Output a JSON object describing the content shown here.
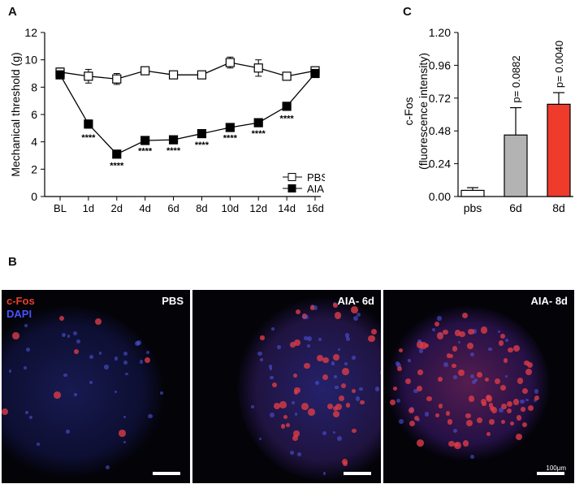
{
  "panels": {
    "a": "A",
    "b": "B",
    "c": "C"
  },
  "chart_data": [
    {
      "type": "line",
      "panel": "A",
      "ylabel": "Mechanical threshold (g)",
      "ylim": [
        0,
        12
      ],
      "yticks": [
        0,
        2,
        4,
        6,
        8,
        10,
        12
      ],
      "categories": [
        "BL",
        "1d",
        "2d",
        "4d",
        "6d",
        "8d",
        "10d",
        "12d",
        "14d",
        "16d"
      ],
      "series": [
        {
          "name": "PBS",
          "marker": "open-square",
          "values": [
            9.1,
            8.8,
            8.6,
            9.2,
            8.9,
            8.9,
            9.8,
            9.4,
            8.8,
            9.2
          ],
          "errors": [
            0.3,
            0.5,
            0.4,
            0.2,
            0.15,
            0.2,
            0.4,
            0.6,
            0.2,
            0.2
          ]
        },
        {
          "name": "AIA",
          "marker": "filled-square",
          "values": [
            8.9,
            5.3,
            3.1,
            4.1,
            4.15,
            4.6,
            5.05,
            5.4,
            6.6,
            9.0
          ],
          "errors": [
            0.2,
            0.3,
            0.15,
            0.1,
            0.1,
            0.15,
            0.1,
            0.1,
            0.2,
            0.1
          ]
        }
      ],
      "significance": [
        "",
        "****",
        "****",
        "****",
        "****",
        "****",
        "****",
        "****",
        "****",
        ""
      ],
      "legend_position": "bottom-right"
    },
    {
      "type": "bar",
      "panel": "C",
      "ylabel": "c-Fos",
      "ylabel2": "(fluorescence intensity)",
      "ylim": [
        0,
        1.2
      ],
      "yticks": [
        "0.00",
        "0.24",
        "0.48",
        "0.72",
        "0.96",
        "1.20"
      ],
      "categories": [
        "pbs",
        "6d",
        "8d"
      ],
      "values": [
        0.045,
        0.45,
        0.675
      ],
      "errors": [
        0.02,
        0.2,
        0.085
      ],
      "colors": [
        "#ffffff",
        "#b3b3b3",
        "#ee3b2c"
      ],
      "annotations": [
        "",
        "p= 0.0882",
        "p= 0.0040"
      ]
    }
  ],
  "micrographs": [
    {
      "label": "PBS",
      "stains": [
        "c-Fos",
        "DAPI"
      ],
      "stain_colors": [
        "#e8402a",
        "#4a52ff"
      ]
    },
    {
      "label": "AIA- 6d"
    },
    {
      "label": "AIA- 8d",
      "scale_label": "100μm"
    }
  ]
}
